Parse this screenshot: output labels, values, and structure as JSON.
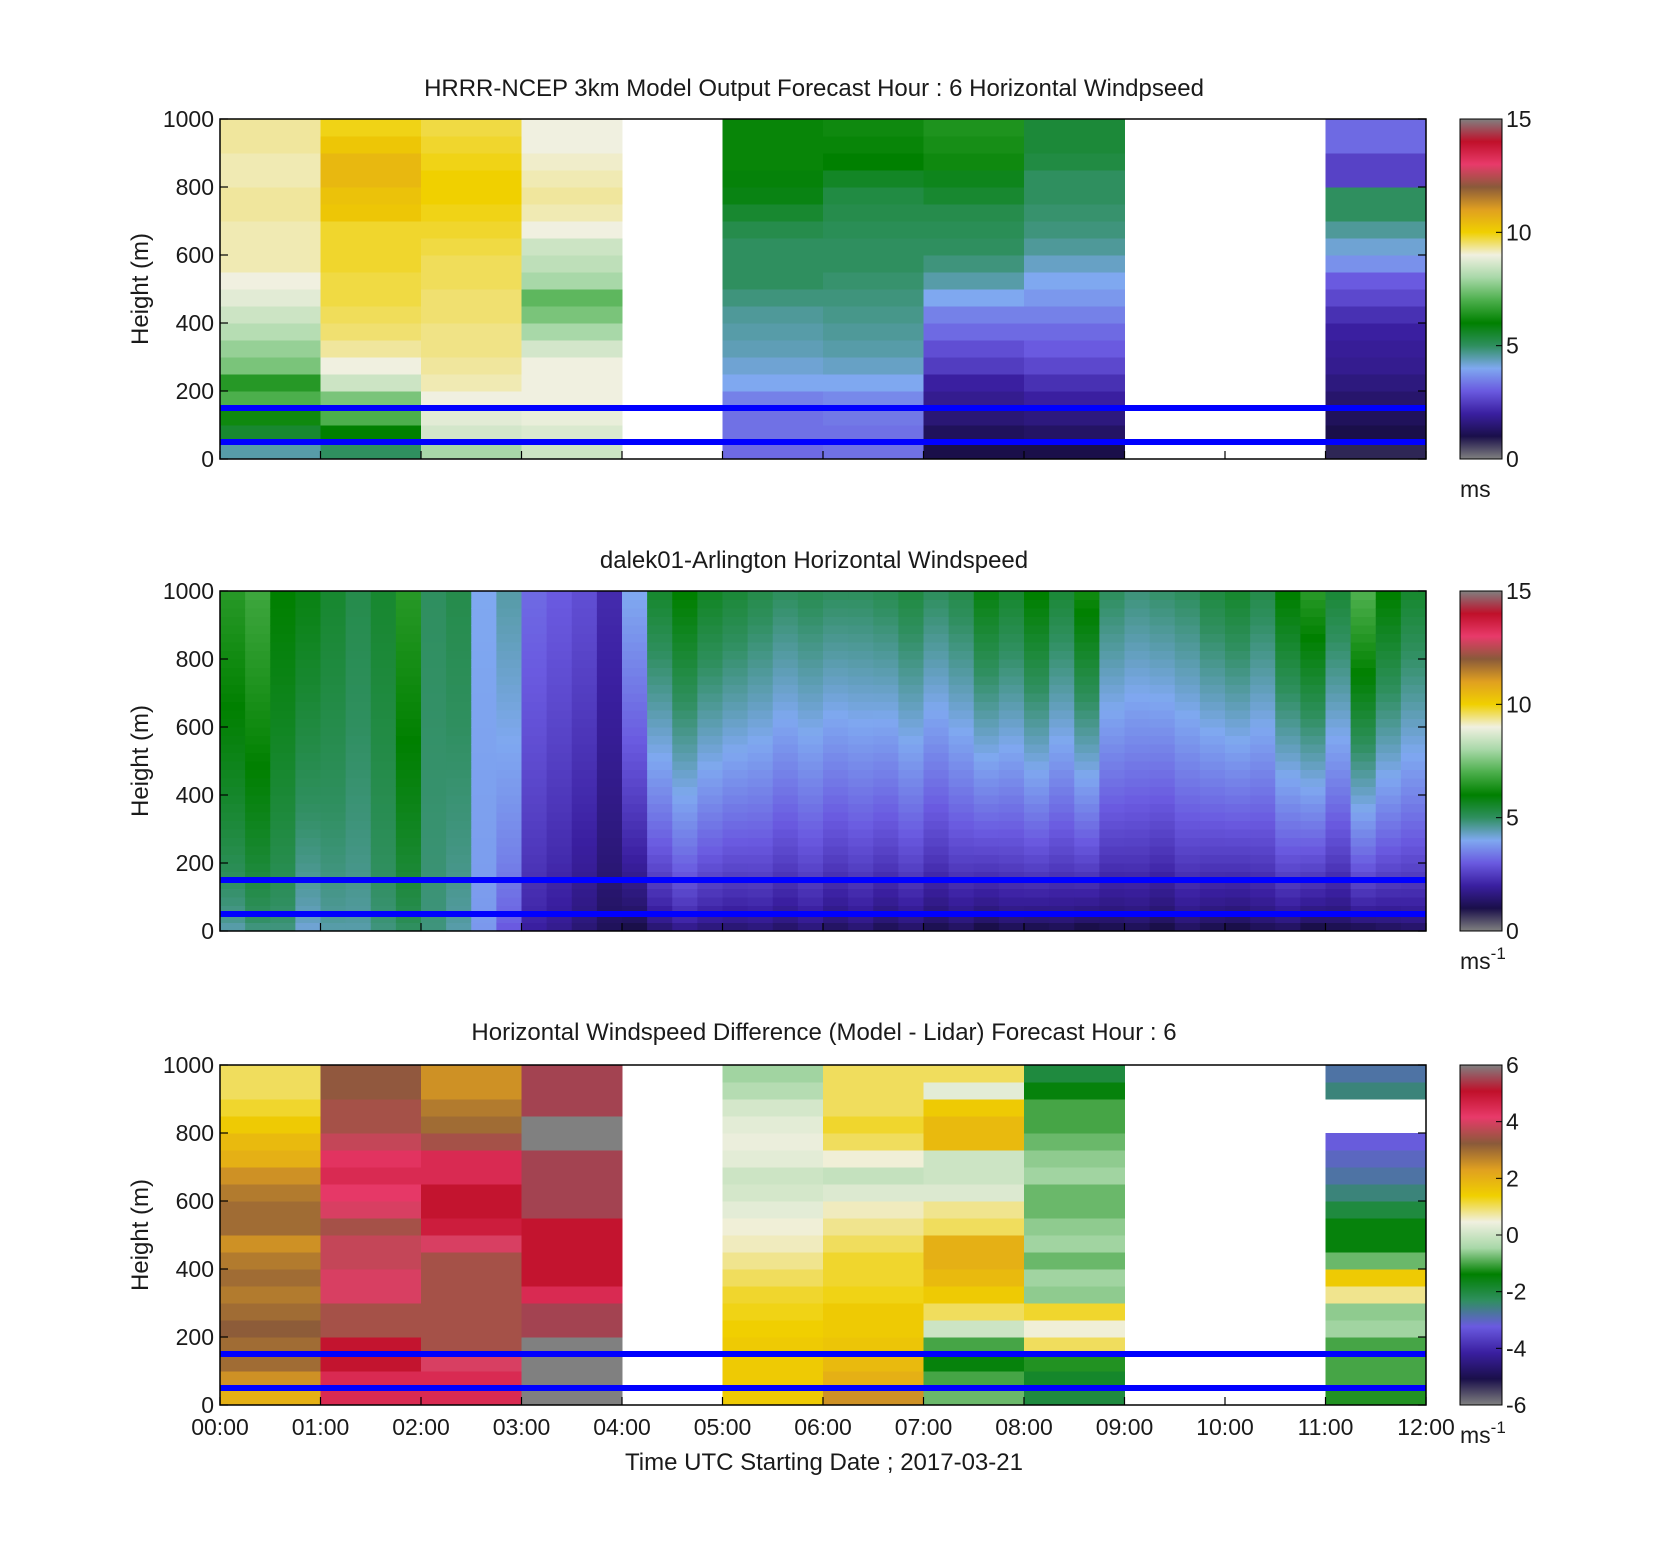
{
  "colors": {
    "speed_scale": [
      "#808080",
      "#1a0f4a",
      "#3a1fa0",
      "#6a5ae0",
      "#7fa8f0",
      "#2f8f5f",
      "#008000",
      "#4caf4c",
      "#a8d8a8",
      "#f0f0e0",
      "#f0d000",
      "#e0a020",
      "#8a5a3a",
      "#e83a6a",
      "#c0102a",
      "#808080"
    ],
    "diff_scale": [
      "#808080",
      "#1a0f4a",
      "#3a1fa0",
      "#6a5ae0",
      "#2f8f5f",
      "#008000",
      "#a8d8a8",
      "#f0f0e0",
      "#f0d000",
      "#e0a020",
      "#8a5a3a",
      "#e83a6a",
      "#c0102a",
      "#808080"
    ],
    "reference_line": "#0000ff"
  },
  "x_ticks": [
    "00:00",
    "01:00",
    "02:00",
    "03:00",
    "04:00",
    "05:00",
    "06:00",
    "07:00",
    "08:00",
    "09:00",
    "10:00",
    "11:00",
    "12:00"
  ],
  "xlabel": "Time UTC  Starting Date ; 2017-03-21",
  "chart_data": [
    {
      "type": "heatmap",
      "title": "HRRR-NCEP 3km Model Output   Forecast Hour : 6 Horizontal Windpseed",
      "ylabel": "Height (m)",
      "ylim": [
        0,
        1000
      ],
      "y_ticks": [
        "0",
        "200",
        "400",
        "600",
        "800",
        "1000"
      ],
      "colorbar": {
        "range": [
          0,
          15
        ],
        "ticks": [
          "0",
          "5",
          "10",
          "15"
        ],
        "unit": "ms"
      },
      "reference_lines_m": [
        50,
        150
      ],
      "columns": [
        {
          "hour": 0,
          "values": [
            4.5,
            5.5,
            6.2,
            7.0,
            6.5,
            7.5,
            7.8,
            8.2,
            8.5,
            8.8,
            9.0,
            9.2,
            9.2,
            9.2,
            9.3,
            9.3,
            9.2,
            9.2,
            9.3,
            9.3
          ]
        },
        {
          "hour": 1,
          "values": [
            5.0,
            6.0,
            7.0,
            7.5,
            8.5,
            9.0,
            9.3,
            9.5,
            9.6,
            9.7,
            9.7,
            9.8,
            9.8,
            9.8,
            10.2,
            10.3,
            10.5,
            10.5,
            10.2,
            9.9
          ]
        },
        {
          "hour": 2,
          "values": [
            8.0,
            8.6,
            8.8,
            9.0,
            9.2,
            9.3,
            9.4,
            9.4,
            9.5,
            9.5,
            9.6,
            9.6,
            9.7,
            9.8,
            9.9,
            10.0,
            10.0,
            9.9,
            9.8,
            9.7
          ]
        },
        {
          "hour": 3,
          "values": [
            8.5,
            8.7,
            8.9,
            9.0,
            9.0,
            9.0,
            8.6,
            8.0,
            7.5,
            7.2,
            8.0,
            8.3,
            8.5,
            9.0,
            9.2,
            9.3,
            9.2,
            9.1,
            9.0,
            9.0
          ]
        },
        {
          "hour": 4,
          "values": []
        },
        {
          "hour": 5,
          "values": [
            3.2,
            3.3,
            3.3,
            3.5,
            4.0,
            4.2,
            4.4,
            4.5,
            4.6,
            4.8,
            5.0,
            5.0,
            5.0,
            5.2,
            5.5,
            5.8,
            5.9,
            6.1,
            6.1,
            6.1
          ]
        },
        {
          "hour": 6,
          "values": [
            3.3,
            3.3,
            3.4,
            3.6,
            4.0,
            4.3,
            4.5,
            4.6,
            4.7,
            4.8,
            4.9,
            5.0,
            5.0,
            5.1,
            5.2,
            5.3,
            5.6,
            6.0,
            6.1,
            6.2
          ]
        },
        {
          "hour": 7,
          "values": [
            1.0,
            1.2,
            1.5,
            1.8,
            2.0,
            2.5,
            2.8,
            3.2,
            3.5,
            4.0,
            4.5,
            4.8,
            5.0,
            5.1,
            5.2,
            5.5,
            5.7,
            6.2,
            6.3,
            6.4
          ]
        },
        {
          "hour": 8,
          "values": [
            1.0,
            1.3,
            1.6,
            2.0,
            2.3,
            2.7,
            3.0,
            3.2,
            3.5,
            3.8,
            4.0,
            4.3,
            4.6,
            4.8,
            4.9,
            5.0,
            5.0,
            5.3,
            5.4,
            5.4
          ]
        },
        {
          "hour": 9,
          "values": []
        },
        {
          "hour": 10,
          "values": []
        },
        {
          "hour": 11,
          "values": [
            0.8,
            1.0,
            1.2,
            1.4,
            1.6,
            1.8,
            1.9,
            2.0,
            2.3,
            2.7,
            3.0,
            3.7,
            4.2,
            4.6,
            5.0,
            5.0,
            2.6,
            2.6,
            3.2,
            3.2
          ]
        }
      ]
    },
    {
      "type": "heatmap",
      "title": "dalek01-Arlington  Horizontal Windspeed",
      "ylabel": "Height (m)",
      "ylim": [
        0,
        1000
      ],
      "y_ticks": [
        "0",
        "200",
        "400",
        "600",
        "800",
        "1000"
      ],
      "colorbar": {
        "range": [
          0,
          15
        ],
        "ticks": [
          "0",
          "5",
          "10",
          "15"
        ],
        "unit": "ms-1"
      },
      "reference_lines_m": [
        50,
        150
      ],
      "profile_interval_minutes": 15,
      "profiles": [
        {
          "hour": 0.0,
          "low": 4.5,
          "high": 6.5
        },
        {
          "hour": 0.25,
          "low": 4.8,
          "high": 6.8
        },
        {
          "hour": 0.5,
          "low": 4.8,
          "high": 6.0
        },
        {
          "hour": 0.75,
          "low": 4.2,
          "high": 5.8
        },
        {
          "hour": 1.0,
          "low": 4.5,
          "high": 5.5
        },
        {
          "hour": 1.25,
          "low": 4.5,
          "high": 5.2
        },
        {
          "hour": 1.5,
          "low": 4.8,
          "high": 5.5
        },
        {
          "hour": 1.75,
          "low": 5.0,
          "high": 6.5
        },
        {
          "hour": 2.0,
          "low": 4.8,
          "high": 5.0
        },
        {
          "hour": 2.25,
          "low": 4.5,
          "high": 5.2
        },
        {
          "hour": 2.5,
          "low": 3.8,
          "high": 4.0
        },
        {
          "hour": 2.75,
          "low": 3.0,
          "high": 4.5
        },
        {
          "hour": 3.0,
          "low": 2.0,
          "high": 3.2
        },
        {
          "hour": 3.25,
          "low": 1.8,
          "high": 3.0
        },
        {
          "hour": 3.5,
          "low": 1.5,
          "high": 2.8
        },
        {
          "hour": 3.75,
          "low": 1.2,
          "high": 2.2
        },
        {
          "hour": 4.0,
          "low": 1.0,
          "high": 4.0
        },
        {
          "hour": 4.25,
          "low": 1.5,
          "high": 5.5
        },
        {
          "hour": 4.5,
          "low": 1.8,
          "high": 6.0
        },
        {
          "hour": 4.75,
          "low": 1.6,
          "high": 5.6
        },
        {
          "hour": 5.0,
          "low": 1.5,
          "high": 5.4
        },
        {
          "hour": 5.25,
          "low": 1.6,
          "high": 5.2
        },
        {
          "hour": 5.5,
          "low": 1.4,
          "high": 5.0
        },
        {
          "hour": 5.75,
          "low": 1.6,
          "high": 5.1
        },
        {
          "hour": 6.0,
          "low": 1.3,
          "high": 5.0
        },
        {
          "hour": 6.25,
          "low": 1.5,
          "high": 5.0
        },
        {
          "hour": 6.5,
          "low": 1.2,
          "high": 5.1
        },
        {
          "hour": 6.75,
          "low": 1.4,
          "high": 5.3
        },
        {
          "hour": 7.0,
          "low": 1.1,
          "high": 5.0
        },
        {
          "hour": 7.25,
          "low": 1.3,
          "high": 5.2
        },
        {
          "hour": 7.5,
          "low": 1.0,
          "high": 5.8
        },
        {
          "hour": 7.75,
          "low": 1.2,
          "high": 5.5
        },
        {
          "hour": 8.0,
          "low": 1.1,
          "high": 6.0
        },
        {
          "hour": 8.25,
          "low": 1.2,
          "high": 5.4
        },
        {
          "hour": 8.5,
          "low": 1.0,
          "high": 6.2
        },
        {
          "hour": 8.75,
          "low": 1.1,
          "high": 5.0
        },
        {
          "hour": 9.0,
          "low": 1.2,
          "high": 4.8
        },
        {
          "hour": 9.25,
          "low": 1.0,
          "high": 4.9
        },
        {
          "hour": 9.5,
          "low": 1.3,
          "high": 5.0
        },
        {
          "hour": 9.75,
          "low": 1.1,
          "high": 5.3
        },
        {
          "hour": 10.0,
          "low": 1.0,
          "high": 5.5
        },
        {
          "hour": 10.25,
          "low": 1.2,
          "high": 5.2
        },
        {
          "hour": 10.5,
          "low": 1.3,
          "high": 6.0
        },
        {
          "hour": 10.75,
          "low": 1.0,
          "high": 6.5
        },
        {
          "hour": 11.0,
          "low": 1.1,
          "high": 5.4
        },
        {
          "hour": 11.25,
          "low": 1.2,
          "high": 7.0
        },
        {
          "hour": 11.5,
          "low": 1.3,
          "high": 6.0
        },
        {
          "hour": 11.75,
          "low": 1.4,
          "high": 5.5
        }
      ]
    },
    {
      "type": "heatmap",
      "title": "Horizontal Windspeed Difference (Model - Lidar) Forecast Hour : 6",
      "ylabel": "Height (m)",
      "ylim": [
        0,
        1000
      ],
      "y_ticks": [
        "0",
        "200",
        "400",
        "600",
        "800",
        "1000"
      ],
      "colorbar": {
        "range": [
          -6,
          6
        ],
        "ticks": [
          "-6",
          "-4",
          "-2",
          "0",
          "2",
          "4",
          "6"
        ],
        "unit": "ms-1"
      },
      "reference_lines_m": [
        50,
        150
      ],
      "columns": [
        {
          "hour": 0,
          "values": [
            2.0,
            2.5,
            3.0,
            3.0,
            3.2,
            3.0,
            2.8,
            3.0,
            2.8,
            2.5,
            3.0,
            3.0,
            2.8,
            2.5,
            2.0,
            1.8,
            1.5,
            1.2,
            1.0,
            1.0
          ]
        },
        {
          "hour": 1,
          "values": [
            4.5,
            4.5,
            5.0,
            5.0,
            3.5,
            3.5,
            4.0,
            4.0,
            3.8,
            3.8,
            3.5,
            4.0,
            4.2,
            4.5,
            4.3,
            3.8,
            3.5,
            3.5,
            3.3,
            3.3
          ]
        },
        {
          "hour": 2,
          "values": [
            4.5,
            4.5,
            4.0,
            3.5,
            3.5,
            3.5,
            3.5,
            3.5,
            3.5,
            4.0,
            4.8,
            5.0,
            5.0,
            4.5,
            4.5,
            3.5,
            3.0,
            2.8,
            2.5,
            2.5
          ]
        },
        {
          "hour": 3,
          "values": [
            6.0,
            6.0,
            6.0,
            6.0,
            5.5,
            5.5,
            4.5,
            5.0,
            5.0,
            5.0,
            5.0,
            5.5,
            5.5,
            5.5,
            5.5,
            6.0,
            6.0,
            5.5,
            5.5,
            5.5
          ]
        },
        {
          "hour": 4,
          "values": []
        },
        {
          "hour": 5,
          "values": [
            1.5,
            1.5,
            1.5,
            1.5,
            1.4,
            1.3,
            1.2,
            1.0,
            0.8,
            0.6,
            0.5,
            0.3,
            0.1,
            0.0,
            0.3,
            0.4,
            0.3,
            0.1,
            -0.3,
            -0.5
          ]
        },
        {
          "hour": 6,
          "values": [
            2.5,
            2.0,
            1.8,
            1.6,
            1.5,
            1.5,
            1.3,
            1.2,
            1.2,
            1.0,
            0.8,
            0.6,
            0.2,
            -0.1,
            0.5,
            1.0,
            1.2,
            1.0,
            1.0,
            1.0
          ]
        },
        {
          "hour": 7,
          "values": [
            -0.8,
            -1.0,
            -1.5,
            -1.0,
            0.0,
            1.0,
            1.5,
            1.8,
            2.0,
            2.0,
            1.0,
            0.8,
            0.2,
            0.0,
            0.0,
            1.8,
            1.8,
            1.5,
            0.3,
            1.0
          ]
        },
        {
          "hour": 8,
          "values": [
            -2.0,
            -1.8,
            -1.2,
            1.0,
            0.5,
            1.2,
            -0.6,
            -0.5,
            -0.8,
            -0.5,
            -0.6,
            -0.8,
            -0.8,
            -0.5,
            -0.6,
            -0.8,
            -1.0,
            -1.0,
            -1.5,
            -2.0
          ]
        },
        {
          "hour": 9,
          "values": []
        },
        {
          "hour": 10,
          "values": []
        },
        {
          "hour": 11,
          "values": [
            -1.2,
            -1.0,
            -1.0,
            -1.0,
            -0.5,
            -0.6,
            0.8,
            1.5,
            -0.8,
            -1.5,
            -1.5,
            -2.0,
            -2.5,
            -2.8,
            -3.0,
            -3.2,
            null,
            null,
            -2.5,
            -2.8
          ]
        }
      ]
    }
  ]
}
